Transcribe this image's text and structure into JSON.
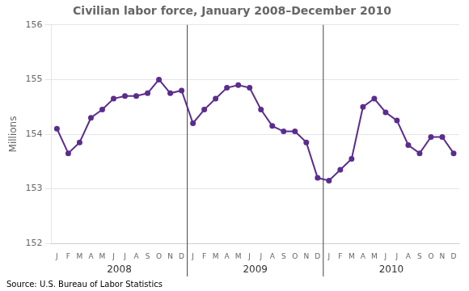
{
  "chart_data": {
    "type": "line",
    "title": "Civilian labor force, January 2008–December 2010",
    "ylabel": "Millions",
    "source": "Source: U.S. Bureau of Labor Statistics",
    "categories": [
      "J",
      "F",
      "M",
      "A",
      "M",
      "J",
      "J",
      "A",
      "S",
      "O",
      "N",
      "D",
      "J",
      "F",
      "M",
      "A",
      "M",
      "J",
      "J",
      "A",
      "S",
      "O",
      "N",
      "D",
      "J",
      "F",
      "M",
      "A",
      "M",
      "J",
      "J",
      "A",
      "S",
      "O",
      "N",
      "D"
    ],
    "year_labels": [
      "2008",
      "2009",
      "2010"
    ],
    "values": [
      154.1,
      153.65,
      153.85,
      154.3,
      154.45,
      154.65,
      154.7,
      154.7,
      154.75,
      155.0,
      154.75,
      154.8,
      154.2,
      154.45,
      154.65,
      154.85,
      154.9,
      154.85,
      154.45,
      154.15,
      154.05,
      154.05,
      153.85,
      153.2,
      153.15,
      153.35,
      153.55,
      154.5,
      154.65,
      154.4,
      154.25,
      153.8,
      153.65,
      153.95,
      153.95,
      153.65
    ],
    "color": "#5b2d8e",
    "marker": "circle",
    "ylim": [
      152,
      156
    ],
    "yticks": [
      152,
      153,
      154,
      155,
      156
    ],
    "grid": true
  }
}
